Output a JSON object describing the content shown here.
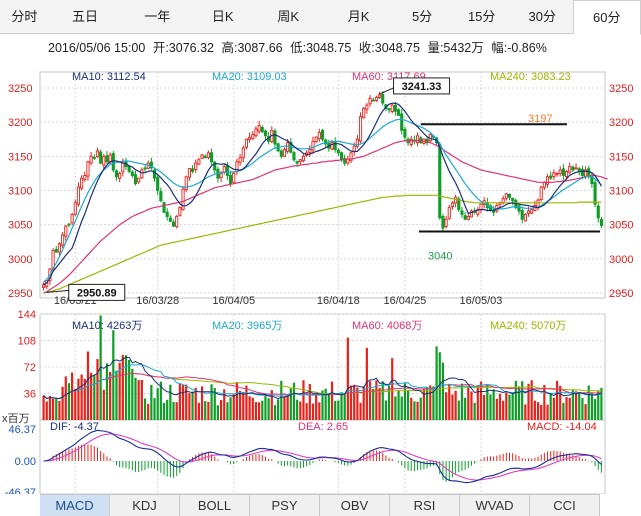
{
  "period_tabs": [
    {
      "label": "分时",
      "name": "tab-fenshi"
    },
    {
      "label": "五日",
      "name": "tab-five-day"
    },
    {
      "label": "一年",
      "name": "tab-one-year"
    },
    {
      "label": "日K",
      "name": "tab-daily-k"
    },
    {
      "label": "周K",
      "name": "tab-weekly-k"
    },
    {
      "label": "月K",
      "name": "tab-monthly-k"
    },
    {
      "label": "5分",
      "name": "tab-5min"
    },
    {
      "label": "15分",
      "name": "tab-15min"
    },
    {
      "label": "30分",
      "name": "tab-30min"
    },
    {
      "label": "60分",
      "name": "tab-60min"
    }
  ],
  "active_period": "60分",
  "quote": {
    "datetime": "2016/05/06 15:00",
    "open_label": "开:",
    "open": "3076.32",
    "high_label": "高:",
    "high": "3087.66",
    "low_label": "低:",
    "low": "3048.75",
    "close_label": "收:",
    "close": "3048.75",
    "volume_label": "量:",
    "volume": "5432万",
    "change_label": "幅:",
    "change": "-0.86%"
  },
  "colors": {
    "up": "#e8221b",
    "down": "#0e9e28",
    "ma10": "#1a2f7a",
    "ma20": "#19a9d4",
    "ma60": "#e03273",
    "ma240": "#9cb500",
    "annotation_high": "#f07828",
    "annotation_low": "#1f9e46",
    "axis_label": "#e02020"
  },
  "chart_data": {
    "type": "candlestick",
    "price_panel": {
      "ylim": [
        2950,
        3250
      ],
      "y_ticks": [
        "3250",
        "3200",
        "3150",
        "3100",
        "3050",
        "3000",
        "2950"
      ],
      "x_ticks": [
        "16/03/21",
        "16/03/28",
        "16/04/05",
        "16/04/18",
        "16/04/25",
        "16/05/03"
      ],
      "legend": [
        {
          "label": "MA10: 3112.54",
          "color": "#1a2f7a"
        },
        {
          "label": "MA20: 3109.03",
          "color": "#19a9d4"
        },
        {
          "label": "MA60: 3117.69",
          "color": "#e03273"
        },
        {
          "label": "MA240: 3083.23",
          "color": "#9cb500"
        }
      ],
      "max_marker": {
        "label": "3241.33",
        "value": 3241.33
      },
      "min_marker": {
        "label": "2950.89",
        "value": 2950.89
      },
      "annotations": [
        {
          "label": "3197",
          "value": 3197
        },
        {
          "label": "3040",
          "value": 3040
        }
      ],
      "close": [
        2962,
        2968,
        2985,
        3012,
        3010,
        3022,
        3035,
        3048,
        3050,
        3065,
        3082,
        3105,
        3118,
        3122,
        3142,
        3150,
        3148,
        3158,
        3140,
        3150,
        3142,
        3152,
        3130,
        3120,
        3125,
        3140,
        3135,
        3128,
        3122,
        3110,
        3118,
        3130,
        3132,
        3140,
        3133,
        3118,
        3100,
        3085,
        3068,
        3062,
        3055,
        3048,
        3062,
        3075,
        3102,
        3120,
        3132,
        3128,
        3140,
        3145,
        3152,
        3148,
        3155,
        3142,
        3130,
        3118,
        3125,
        3135,
        3122,
        3110,
        3125,
        3142,
        3148,
        3162,
        3175,
        3178,
        3182,
        3190,
        3195,
        3186,
        3180,
        3172,
        3188,
        3168,
        3158,
        3150,
        3160,
        3170,
        3156,
        3145,
        3140,
        3145,
        3150,
        3155,
        3160,
        3172,
        3178,
        3185,
        3175,
        3168,
        3162,
        3170,
        3160,
        3155,
        3145,
        3140,
        3146,
        3155,
        3165,
        3175,
        3208,
        3220,
        3225,
        3235,
        3232,
        3236,
        3240,
        3228,
        3220,
        3218,
        3225,
        3216,
        3210,
        3188,
        3178,
        3170,
        3175,
        3172,
        3180,
        3170,
        3175,
        3170,
        3182,
        3178,
        3170,
        3060,
        3045,
        3058,
        3075,
        3082,
        3090,
        3072,
        3065,
        3058,
        3062,
        3070,
        3068,
        3072,
        3080,
        3085,
        3075,
        3072,
        3068,
        3078,
        3082,
        3088,
        3095,
        3090,
        3085,
        3075,
        3070,
        3058,
        3065,
        3070,
        3072,
        3078,
        3086,
        3105,
        3112,
        3120,
        3118,
        3126,
        3125,
        3130,
        3122,
        3128,
        3135,
        3130,
        3133,
        3128,
        3122,
        3130,
        3120,
        3110,
        3080,
        3060,
        3048.75
      ],
      "ma20": [
        2966,
        2970,
        2976,
        2986,
        2994,
        3003,
        3013,
        3024,
        3034,
        3045,
        3055,
        3066,
        3077,
        3087,
        3097,
        3105,
        3113,
        3120,
        3125,
        3130,
        3134,
        3138,
        3140,
        3141,
        3142,
        3143,
        3143,
        3143,
        3142,
        3141,
        3140,
        3139,
        3138,
        3137,
        3135,
        3133,
        3130,
        3127,
        3123,
        3119,
        3115,
        3111,
        3108,
        3106,
        3105,
        3105,
        3106,
        3107,
        3109,
        3111,
        3114,
        3117,
        3120,
        3122,
        3124,
        3125,
        3126,
        3127,
        3127,
        3127,
        3127,
        3128,
        3129,
        3131,
        3134,
        3137,
        3140,
        3144,
        3148,
        3151,
        3154,
        3157,
        3160,
        3162,
        3163,
        3164,
        3165,
        3165,
        3164,
        3163,
        3162,
        3161,
        3161,
        3161,
        3162,
        3163,
        3165,
        3167,
        3169,
        3170,
        3171,
        3172,
        3172,
        3172,
        3171,
        3170,
        3169,
        3168,
        3167,
        3167,
        3168,
        3170,
        3173,
        3177,
        3181,
        3185,
        3189,
        3193,
        3196,
        3199,
        3201,
        3203,
        3204,
        3204,
        3203,
        3201,
        3199,
        3197,
        3195,
        3193,
        3191,
        3188,
        3185,
        3180,
        3175,
        3168,
        3160,
        3152,
        3145,
        3138,
        3131,
        3124,
        3117,
        3110,
        3104,
        3098,
        3093,
        3088,
        3084,
        3081,
        3078,
        3076,
        3074,
        3073,
        3073,
        3073,
        3074,
        3075,
        3076,
        3076,
        3076,
        3075,
        3074,
        3074,
        3074,
        3075,
        3076,
        3078,
        3081,
        3084,
        3087,
        3091,
        3094,
        3098,
        3101,
        3104,
        3107,
        3110,
        3113,
        3116,
        3118,
        3120,
        3121,
        3120,
        3117,
        3113,
        3108
      ],
      "ma60": [
        2950,
        2952,
        2955,
        2958,
        2961,
        2964,
        2968,
        2972,
        2976,
        2981,
        2986,
        2991,
        2996,
        3001,
        3006,
        3011,
        3016,
        3021,
        3026,
        3030,
        3034,
        3038,
        3042,
        3046,
        3050,
        3053,
        3056,
        3059,
        3062,
        3064,
        3066,
        3068,
        3070,
        3072,
        3074,
        3075,
        3076,
        3077,
        3078,
        3079,
        3080,
        3081,
        3082,
        3083,
        3084,
        3086,
        3088,
        3090,
        3092,
        3094,
        3096,
        3098,
        3100,
        3102,
        3104,
        3105,
        3106,
        3107,
        3108,
        3109,
        3110,
        3111,
        3112,
        3113,
        3114,
        3115,
        3116,
        3118,
        3120,
        3122,
        3124,
        3126,
        3128,
        3130,
        3131,
        3132,
        3133,
        3134,
        3135,
        3136,
        3136,
        3137,
        3138,
        3138,
        3139,
        3140,
        3140,
        3141,
        3142,
        3142,
        3143,
        3143,
        3144,
        3144,
        3145,
        3145,
        3146,
        3146,
        3147,
        3148,
        3149,
        3150,
        3152,
        3154,
        3156,
        3158,
        3160,
        3162,
        3164,
        3166,
        3168,
        3170,
        3171,
        3172,
        3173,
        3173,
        3173,
        3173,
        3173,
        3173,
        3172,
        3171,
        3170,
        3168,
        3166,
        3163,
        3160,
        3157,
        3154,
        3151,
        3148,
        3145,
        3142,
        3140,
        3138,
        3136,
        3134,
        3132,
        3130,
        3129,
        3128,
        3127,
        3126,
        3125,
        3124,
        3123,
        3122,
        3121,
        3120,
        3119,
        3118,
        3117,
        3116,
        3115,
        3114,
        3113,
        3112,
        3112,
        3112,
        3112,
        3112,
        3112,
        3113,
        3113,
        3114,
        3114,
        3115,
        3116,
        3117,
        3118,
        3119,
        3120,
        3121,
        3122,
        3122,
        3121,
        3120,
        3118,
        3117
      ],
      "ma240": [
        2950,
        2951,
        2952,
        2953,
        2955,
        2956,
        2958,
        2960,
        2962,
        2964,
        2966,
        2968,
        2970,
        2972,
        2974,
        2976,
        2978,
        2980,
        2982,
        2984,
        2986,
        2988,
        2990,
        2992,
        2994,
        2996,
        2998,
        3000,
        3002,
        3004,
        3006,
        3008,
        3010,
        3012,
        3014,
        3016,
        3018,
        3020,
        3021,
        3022,
        3023,
        3024,
        3025,
        3026,
        3027,
        3028,
        3029,
        3030,
        3031,
        3032,
        3033,
        3034,
        3035,
        3036,
        3037,
        3038,
        3039,
        3040,
        3041,
        3042,
        3043,
        3044,
        3045,
        3046,
        3047,
        3048,
        3049,
        3050,
        3051,
        3052,
        3053,
        3054,
        3055,
        3056,
        3057,
        3058,
        3059,
        3060,
        3061,
        3062,
        3063,
        3064,
        3065,
        3066,
        3067,
        3068,
        3069,
        3070,
        3071,
        3072,
        3073,
        3074,
        3075,
        3076,
        3077,
        3078,
        3079,
        3080,
        3081,
        3082,
        3083,
        3084,
        3085,
        3086,
        3087,
        3088,
        3089,
        3090,
        3090,
        3091,
        3091,
        3092,
        3092,
        3092,
        3093,
        3093,
        3093,
        3093,
        3093,
        3093,
        3093,
        3093,
        3093,
        3093,
        3093,
        3092,
        3091,
        3090,
        3089,
        3088,
        3087,
        3086,
        3085,
        3084,
        3083,
        3083,
        3082,
        3082,
        3082,
        3082,
        3082,
        3082,
        3082,
        3082,
        3082,
        3082,
        3082,
        3082,
        3082,
        3082,
        3082,
        3082,
        3082,
        3082,
        3082,
        3082,
        3082,
        3082,
        3082,
        3082,
        3082,
        3082,
        3082,
        3082,
        3082,
        3082,
        3082,
        3082,
        3082,
        3083,
        3083,
        3083,
        3083,
        3083,
        3083,
        3083,
        3083
      ]
    },
    "volume_panel": {
      "ylim": [
        0,
        144
      ],
      "y_ticks": [
        "144",
        "108",
        "72",
        "36"
      ],
      "unit": "x百万",
      "legend": [
        {
          "label": "MA10: 4263万",
          "color": "#1a2f7a"
        },
        {
          "label": "MA20: 3965万",
          "color": "#19a9d4"
        },
        {
          "label": "MA60: 4068万",
          "color": "#e03273"
        },
        {
          "label": "MA240: 5070万",
          "color": "#9cb500"
        }
      ]
    },
    "macd_panel": {
      "ylim": [
        -46.37,
        46.37
      ],
      "y_ticks": [
        "46.37",
        "0.00",
        "-46.37"
      ],
      "legend": [
        {
          "label": "DIF: -4.37",
          "color": "#1a2f7a"
        },
        {
          "label": "DEA: 2.65",
          "color": "#e03273"
        },
        {
          "label": "MACD: -14.04",
          "color": "#e02020"
        }
      ]
    }
  },
  "indicator_tabs": [
    "MACD",
    "KDJ",
    "BOLL",
    "PSY",
    "OBV",
    "RSI",
    "WVAD",
    "CCI"
  ],
  "active_indicator": "MACD"
}
